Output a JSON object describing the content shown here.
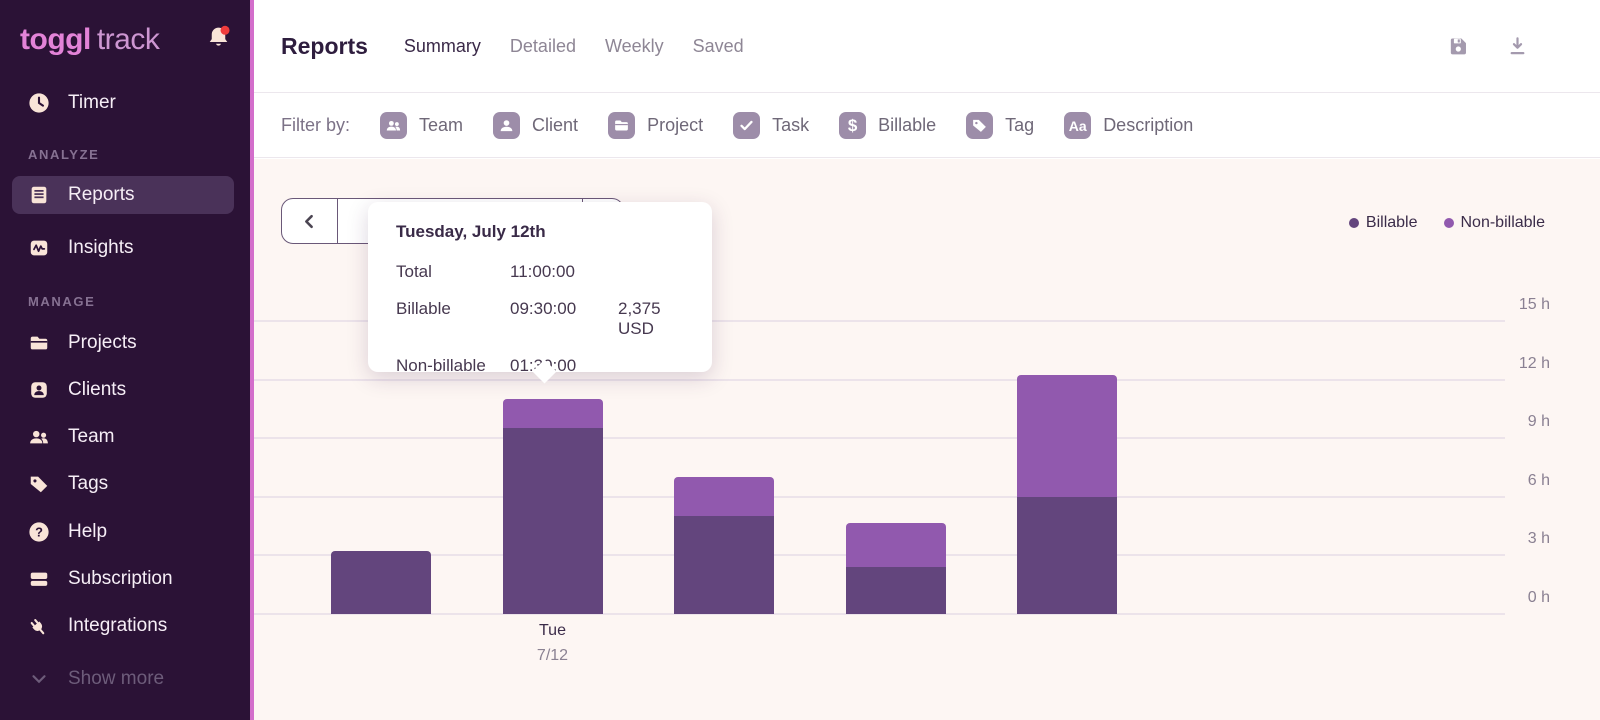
{
  "colors": {
    "sidebar_bg": "#2b1236",
    "sidebar_active_bg": "#4a3259",
    "accent_stripe": "#d36ecb",
    "logo_pink": "#e383d8",
    "icon_cream": "#f9e4d8",
    "notification_red": "#f03c3c",
    "billable": "#63457d",
    "non_billable": "#9159ae",
    "content_bg": "#fdf6f3"
  },
  "sidebar": {
    "logo_bold": "toggl",
    "logo_light": "track",
    "timer_label": "Timer",
    "section_analyze": "ANALYZE",
    "reports_label": "Reports",
    "insights_label": "Insights",
    "section_manage": "MANAGE",
    "projects_label": "Projects",
    "clients_label": "Clients",
    "team_label": "Team",
    "tags_label": "Tags",
    "help_label": "Help",
    "help_glyph": "?",
    "subscription_label": "Subscription",
    "integrations_label": "Integrations",
    "show_more_label": "Show more"
  },
  "header": {
    "title": "Reports",
    "tabs": [
      {
        "label": "Summary",
        "active": true
      },
      {
        "label": "Detailed",
        "active": false
      },
      {
        "label": "Weekly",
        "active": false
      },
      {
        "label": "Saved",
        "active": false
      }
    ]
  },
  "filter_bar": {
    "label": "Filter by:",
    "filters": [
      {
        "label": "Team",
        "icon": "team-icon"
      },
      {
        "label": "Client",
        "icon": "client-icon"
      },
      {
        "label": "Project",
        "icon": "project-icon"
      },
      {
        "label": "Task",
        "icon": "task-icon"
      },
      {
        "label": "Billable",
        "icon": "billable-icon",
        "glyph": "$"
      },
      {
        "label": "Tag",
        "icon": "tag-icon"
      },
      {
        "label": "Description",
        "icon": "description-icon",
        "glyph": "Aa"
      }
    ]
  },
  "legend": [
    {
      "label": "Billable",
      "color": "#63457d"
    },
    {
      "label": "Non-billable",
      "color": "#9159ae"
    }
  ],
  "tooltip": {
    "title": "Tuesday, July 12th",
    "rows": [
      {
        "label": "Total",
        "time": "11:00:00",
        "amount": ""
      },
      {
        "label": "Billable",
        "time": "09:30:00",
        "amount": "2,375 USD"
      },
      {
        "label": "Non-billable",
        "time": "01:30:00",
        "amount": ""
      }
    ]
  },
  "chart_data": {
    "type": "bar",
    "stacked": true,
    "categories": [
      "",
      "Tue 7/12",
      "",
      "",
      ""
    ],
    "series": [
      {
        "name": "Billable",
        "color": "#63457d",
        "values": [
          3.25,
          9.5,
          5,
          2.4,
          6
        ]
      },
      {
        "name": "Non-billable",
        "color": "#9159ae",
        "values": [
          0,
          1.5,
          2,
          2.25,
          6.25
        ]
      }
    ],
    "highlighted_bar_index": 1,
    "x_tick_labels": [
      {
        "index": 1,
        "line1": "Tue",
        "line2": "7/12"
      }
    ],
    "ytick_values": [
      0,
      3,
      6,
      9,
      12,
      15
    ],
    "ytick_labels": [
      "0 h",
      "3 h",
      "6 h",
      "9 h",
      "12 h",
      "15 h"
    ],
    "ylim": [
      0,
      15
    ],
    "grid": true,
    "legend_position": "top-right"
  }
}
